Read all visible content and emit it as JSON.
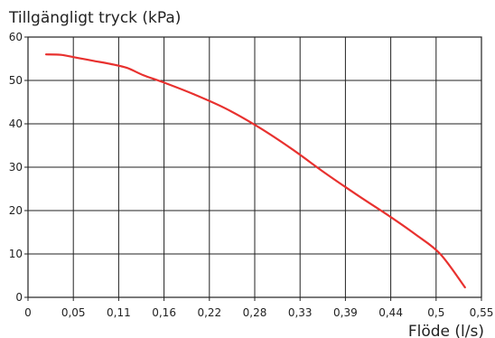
{
  "chart_data": {
    "type": "line",
    "ylabel": "Tillgängligt tryck (kPa)",
    "xlabel": "Flöde (l/s)",
    "x_ticks": [
      "0",
      "0,05",
      "0,11",
      "0,16",
      "0,22",
      "0,28",
      "0,33",
      "0,39",
      "0,44",
      "0,5",
      "0,55"
    ],
    "y_ticks": [
      "0",
      "10",
      "20",
      "30",
      "40",
      "50",
      "60"
    ],
    "xlim": [
      0,
      0.55
    ],
    "ylim": [
      0,
      60
    ],
    "grid": true,
    "series": [
      {
        "color": "#e8312f",
        "x": [
          0.022,
          0.04,
          0.06,
          0.08,
          0.1,
          0.12,
          0.14,
          0.165,
          0.2,
          0.24,
          0.28,
          0.32,
          0.36,
          0.4,
          0.44,
          0.47,
          0.5,
          0.53
        ],
        "y": [
          56.0,
          55.9,
          55.2,
          54.5,
          53.8,
          52.9,
          51.2,
          49.5,
          46.9,
          43.5,
          39.2,
          34.2,
          28.7,
          23.5,
          18.5,
          14.5,
          10.0,
          2.3
        ]
      }
    ]
  }
}
